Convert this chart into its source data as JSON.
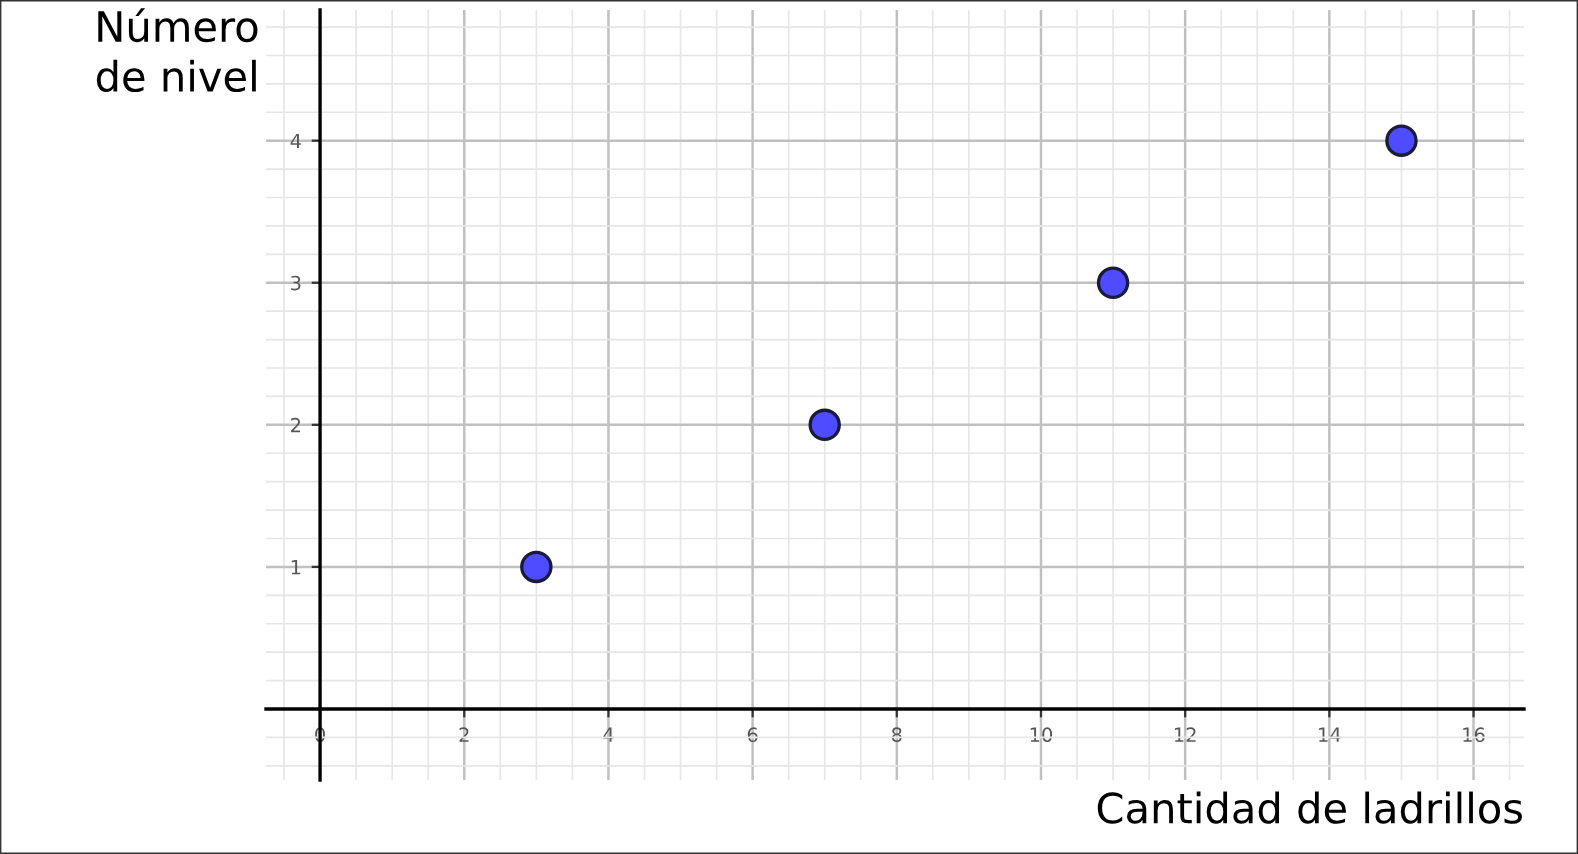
{
  "chart_data": {
    "type": "scatter",
    "xlabel": "Cantidad de ladrillos",
    "ylabel": "Número\nde nivel",
    "x": [
      3,
      7,
      11,
      15
    ],
    "series": [
      {
        "color": "#4d4dff",
        "values": [
          1,
          2,
          3,
          4
        ]
      }
    ],
    "xlim": [
      -0.75,
      16.7
    ],
    "ylim": [
      -0.5,
      4.92
    ],
    "xticks": [
      0,
      2,
      4,
      6,
      8,
      10,
      12,
      14,
      16
    ],
    "yticks": [
      1,
      2,
      3,
      4
    ],
    "grid": true,
    "marker": "circle"
  }
}
